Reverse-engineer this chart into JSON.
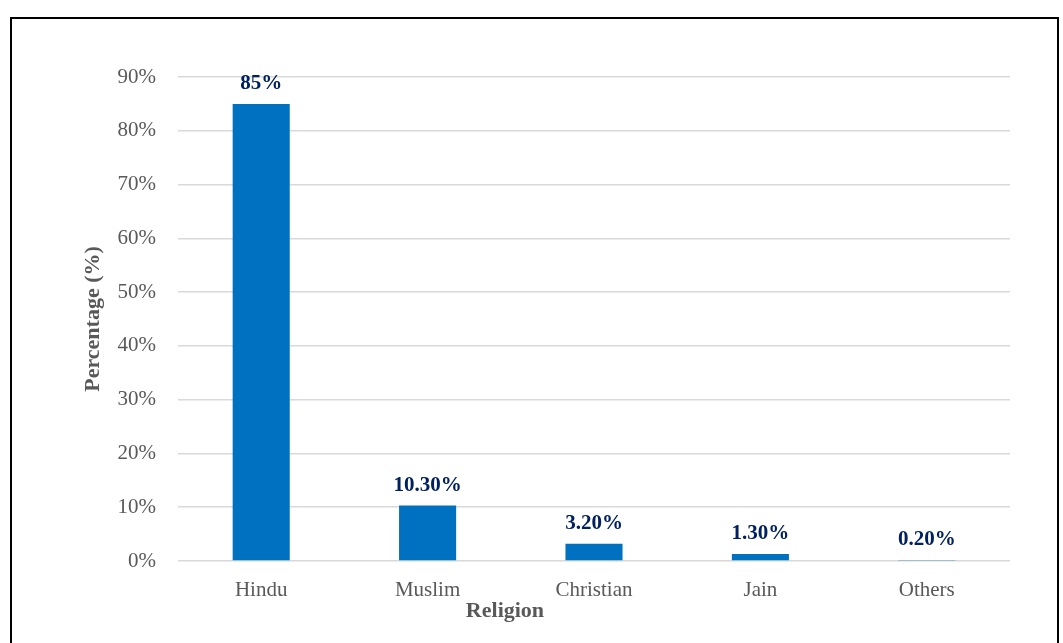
{
  "chart_data": {
    "type": "bar",
    "categories": [
      "Hindu",
      "Muslim",
      "Christian",
      "Jain",
      "Others"
    ],
    "values": [
      85,
      10.3,
      3.2,
      1.3,
      0.2
    ],
    "color": "#0070c0",
    "value_labels": [
      "85%",
      "10.30%",
      "3.20%",
      "1.30%",
      "0.20%"
    ],
    "xlabel": "Religion",
    "ylabel": "Percentage (%)",
    "ylim": [
      0,
      90
    ],
    "yticks": [
      {
        "value": 0,
        "label": "0%"
      },
      {
        "value": 10,
        "label": "10%"
      },
      {
        "value": 20,
        "label": "20%"
      },
      {
        "value": 30,
        "label": "30%"
      },
      {
        "value": 40,
        "label": "40%"
      },
      {
        "value": 50,
        "label": "50%"
      },
      {
        "value": 60,
        "label": "60%"
      },
      {
        "value": 70,
        "label": "70%"
      },
      {
        "value": 80,
        "label": "80%"
      },
      {
        "value": 90,
        "label": "90%"
      }
    ],
    "grid": "y"
  }
}
